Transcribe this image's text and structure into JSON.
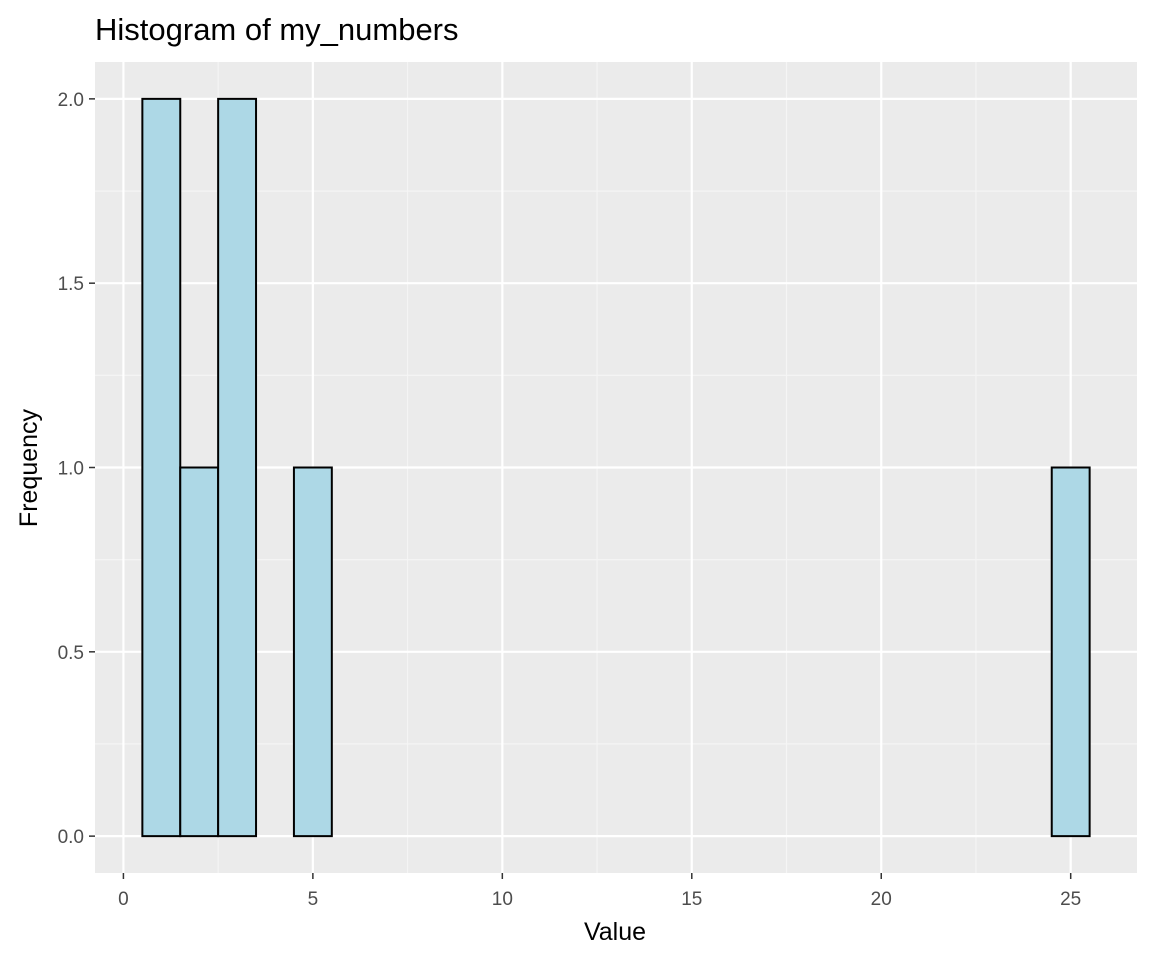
{
  "chart_data": {
    "type": "bar",
    "title": "Histogram of my_numbers",
    "xlabel": "Value",
    "ylabel": "Frequency",
    "bin_width": 1,
    "bins": [
      {
        "x_start": 0.5,
        "x_end": 1.5,
        "count": 2
      },
      {
        "x_start": 1.5,
        "x_end": 2.5,
        "count": 1
      },
      {
        "x_start": 2.5,
        "x_end": 3.5,
        "count": 2
      },
      {
        "x_start": 3.5,
        "x_end": 4.5,
        "count": 0
      },
      {
        "x_start": 4.5,
        "x_end": 5.5,
        "count": 1
      },
      {
        "x_start": 5.5,
        "x_end": 6.5,
        "count": 0
      },
      {
        "x_start": 6.5,
        "x_end": 7.5,
        "count": 0
      },
      {
        "x_start": 7.5,
        "x_end": 8.5,
        "count": 0
      },
      {
        "x_start": 8.5,
        "x_end": 9.5,
        "count": 0
      },
      {
        "x_start": 9.5,
        "x_end": 10.5,
        "count": 0
      },
      {
        "x_start": 10.5,
        "x_end": 11.5,
        "count": 0
      },
      {
        "x_start": 11.5,
        "x_end": 12.5,
        "count": 0
      },
      {
        "x_start": 12.5,
        "x_end": 13.5,
        "count": 0
      },
      {
        "x_start": 13.5,
        "x_end": 14.5,
        "count": 0
      },
      {
        "x_start": 14.5,
        "x_end": 15.5,
        "count": 0
      },
      {
        "x_start": 15.5,
        "x_end": 16.5,
        "count": 0
      },
      {
        "x_start": 16.5,
        "x_end": 17.5,
        "count": 0
      },
      {
        "x_start": 17.5,
        "x_end": 18.5,
        "count": 0
      },
      {
        "x_start": 18.5,
        "x_end": 19.5,
        "count": 0
      },
      {
        "x_start": 19.5,
        "x_end": 20.5,
        "count": 0
      },
      {
        "x_start": 20.5,
        "x_end": 21.5,
        "count": 0
      },
      {
        "x_start": 21.5,
        "x_end": 22.5,
        "count": 0
      },
      {
        "x_start": 22.5,
        "x_end": 23.5,
        "count": 0
      },
      {
        "x_start": 23.5,
        "x_end": 24.5,
        "count": 0
      },
      {
        "x_start": 24.5,
        "x_end": 25.5,
        "count": 1
      }
    ],
    "xlim": [
      -0.75,
      26.75
    ],
    "ylim": [
      -0.1,
      2.1
    ],
    "x_ticks": [
      0,
      5,
      10,
      15,
      20,
      25
    ],
    "x_tick_labels": [
      "0",
      "5",
      "10",
      "15",
      "20",
      "25"
    ],
    "y_ticks": [
      0,
      0.5,
      1,
      1.5,
      2
    ],
    "y_tick_labels": [
      "0.0",
      "0.5",
      "1.0",
      "1.5",
      "2.0"
    ],
    "grid": true,
    "colors": {
      "bar_fill": "#add8e6",
      "bar_outline": "#000000",
      "panel_background": "#ebebeb",
      "grid_major": "#ffffff",
      "grid_minor": "#f5f5f5",
      "tick_text": "#4d4d4d"
    }
  }
}
